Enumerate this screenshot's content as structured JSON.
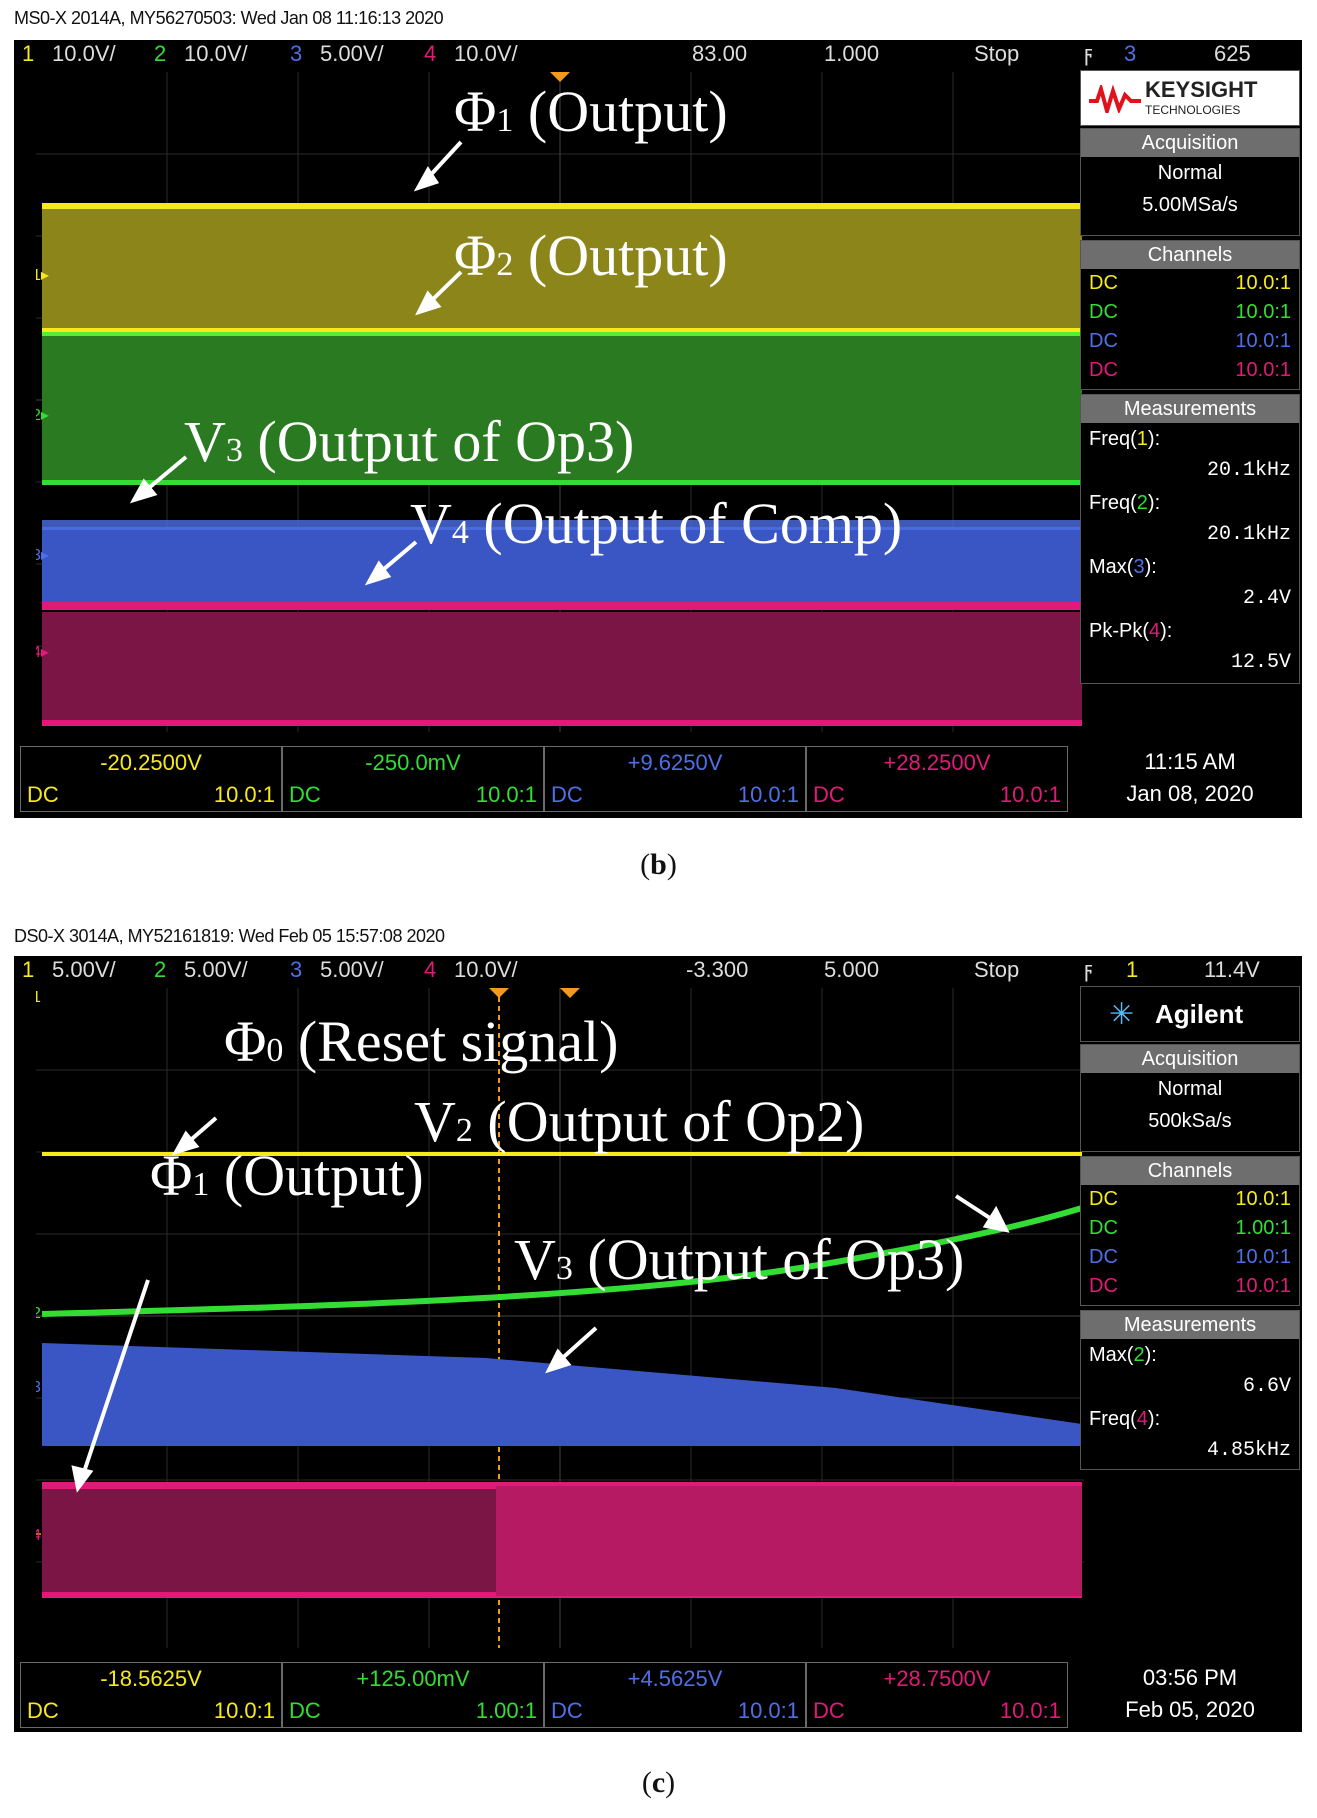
{
  "panel_b": {
    "header": "MS0-X 2014A, MY56270503: Wed Jan 08 11:16:13 2020",
    "caption_label": "b",
    "topbar": {
      "ch1_num": "1",
      "ch1_scale": "10.0V/",
      "ch2_num": "2",
      "ch2_scale": "10.0V/",
      "ch3_num": "3",
      "ch3_scale": "5.00V/",
      "ch4_num": "4",
      "ch4_scale": "10.0V/",
      "delay": "83.00",
      "timebase": "1.000",
      "run_state": "Stop",
      "trig_icon": "trigger-edge-icon",
      "trig_channel": "3",
      "trig_level": "625"
    },
    "brand": "KEYSIGHT",
    "brand_sub": "TECHNOLOGIES",
    "acquisition": {
      "title": "Acquisition",
      "mode": "Normal",
      "rate": "5.00MSa/s"
    },
    "channels": {
      "title": "Channels",
      "rows": [
        {
          "coupling": "DC",
          "ratio": "10.0:1"
        },
        {
          "coupling": "DC",
          "ratio": "10.0:1"
        },
        {
          "coupling": "DC",
          "ratio": "10.0:1"
        },
        {
          "coupling": "DC",
          "ratio": "10.0:1"
        }
      ]
    },
    "measurements": {
      "title": "Measurements",
      "items": [
        {
          "name": "Freq",
          "ch": "1",
          "value": "20.1kHz"
        },
        {
          "name": "Freq",
          "ch": "2",
          "value": "20.1kHz"
        },
        {
          "name": "Max",
          "ch": "3",
          "value": "2.4V"
        },
        {
          "name": "Pk-Pk",
          "ch": "4",
          "value": "12.5V"
        }
      ]
    },
    "bottom": [
      {
        "offset": "-20.2500V",
        "coupling": "DC",
        "ratio": "10.0:1"
      },
      {
        "offset": "-250.0mV",
        "coupling": "DC",
        "ratio": "10.0:1"
      },
      {
        "offset": "+9.6250V",
        "coupling": "DC",
        "ratio": "10.0:1"
      },
      {
        "offset": "+28.2500V",
        "coupling": "DC",
        "ratio": "10.0:1"
      }
    ],
    "clock_time": "11:15 AM",
    "clock_date": "Jan 08, 2020",
    "annotations": {
      "phi1_sym": "Φ",
      "phi1_sub": "1",
      "phi1_txt": " (Output)",
      "phi2_sym": "Φ",
      "phi2_sub": "2",
      "phi2_txt": " (Output)",
      "v3_sym": "V",
      "v3_sub": "3",
      "v3_txt": " (Output of Op3)",
      "v4_sym": "V",
      "v4_sub": "4",
      "v4_txt": " (Output of Comp)"
    },
    "colors": {
      "ch1": "#f7ea1a",
      "ch2": "#33dd33",
      "ch3": "#4f6fe6",
      "ch4": "#e01a78"
    }
  },
  "panel_c": {
    "header": "DS0-X 3014A, MY52161819: Wed Feb 05 15:57:08 2020",
    "caption_label": "c",
    "topbar": {
      "ch1_num": "1",
      "ch1_scale": "5.00V/",
      "ch2_num": "2",
      "ch2_scale": "5.00V/",
      "ch3_num": "3",
      "ch3_scale": "5.00V/",
      "ch4_num": "4",
      "ch4_scale": "10.0V/",
      "delay": "-3.300",
      "timebase": "5.000",
      "run_state": "Stop",
      "trig_icon": "trigger-edge-icon",
      "trig_channel": "1",
      "trig_level": "11.4V"
    },
    "brand": "Agilent",
    "acquisition": {
      "title": "Acquisition",
      "mode": "Normal",
      "rate": "500kSa/s"
    },
    "channels": {
      "title": "Channels",
      "rows": [
        {
          "coupling": "DC",
          "ratio": "10.0:1"
        },
        {
          "coupling": "DC",
          "ratio": "1.00:1"
        },
        {
          "coupling": "DC",
          "ratio": "10.0:1"
        },
        {
          "coupling": "DC",
          "ratio": "10.0:1"
        }
      ]
    },
    "measurements": {
      "title": "Measurements",
      "items": [
        {
          "name": "Max",
          "ch": "2",
          "value": "6.6V"
        },
        {
          "name": "Freq",
          "ch": "4",
          "value": "4.85kHz"
        }
      ]
    },
    "bottom": [
      {
        "offset": "-18.5625V",
        "coupling": "DC",
        "ratio": "10.0:1"
      },
      {
        "offset": "+125.00mV",
        "coupling": "DC",
        "ratio": "1.00:1"
      },
      {
        "offset": "+4.5625V",
        "coupling": "DC",
        "ratio": "10.0:1"
      },
      {
        "offset": "+28.7500V",
        "coupling": "DC",
        "ratio": "10.0:1"
      }
    ],
    "clock_time": "03:56 PM",
    "clock_date": "Feb 05, 2020",
    "annotations": {
      "phi0_sym": "Φ",
      "phi0_sub": "0",
      "phi0_txt": " (Reset signal)",
      "v2_sym": "V",
      "v2_sub": "2",
      "v2_txt": " (Output of Op2)",
      "phi1_sym": "Φ",
      "phi1_sub": "1",
      "phi1_txt": " (Output)",
      "v3_sym": "V",
      "v3_sub": "3",
      "v3_txt": " (Output of Op3)"
    },
    "channel_markers": [
      "1",
      "2",
      "3",
      "4"
    ]
  }
}
